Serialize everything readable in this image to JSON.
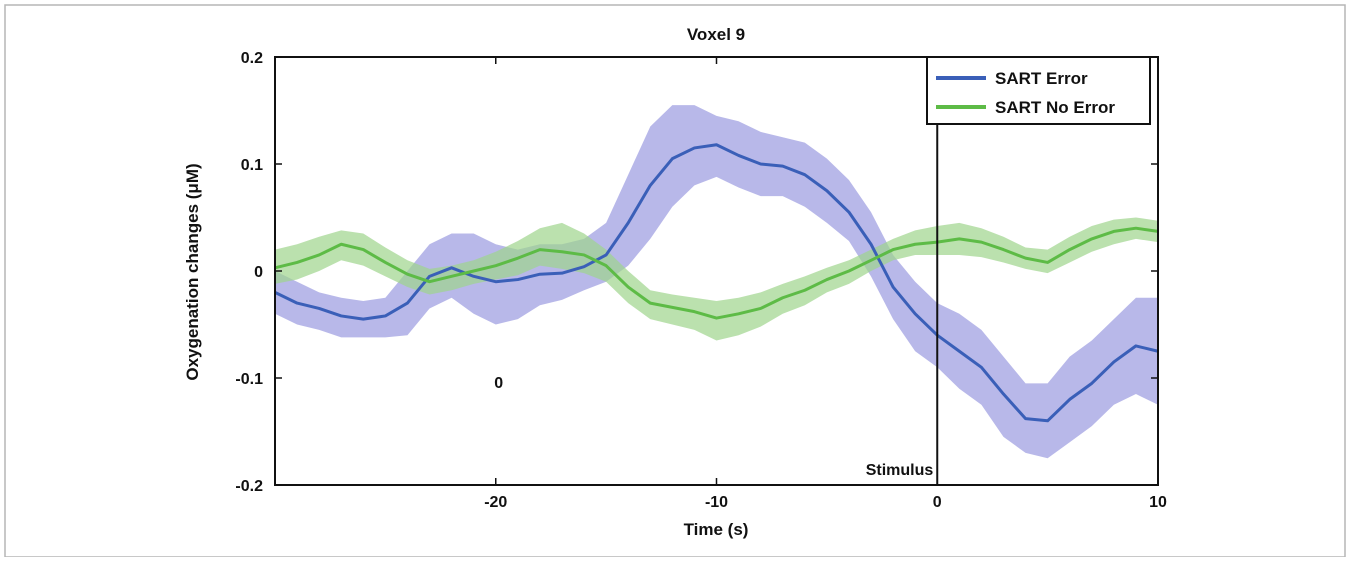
{
  "chart_data": {
    "type": "line",
    "title": "Voxel 9",
    "xlabel": "Time (s)",
    "ylabel": "Oxygenation changes (μM)",
    "xlim": [
      -30,
      10
    ],
    "ylim": [
      -0.2,
      0.2
    ],
    "x_ticks": [
      -20,
      -10,
      0,
      10
    ],
    "x_tick_labels": [
      "-20",
      "-10",
      "0",
      "10"
    ],
    "y_ticks": [
      -0.2,
      -0.1,
      0,
      0.1,
      0.2
    ],
    "y_tick_labels": [
      "-0.2",
      "-0.1",
      "0",
      "0.1",
      "0.2"
    ],
    "grid": false,
    "legend_position": "top-right",
    "series": [
      {
        "name": "SART Error",
        "color": "#3a5fb8",
        "band_color": "#9a9ae0",
        "x": [
          -30,
          -29,
          -28,
          -27,
          -26,
          -25,
          -24,
          -23,
          -22,
          -21,
          -20,
          -19,
          -18,
          -17,
          -16,
          -15,
          -14,
          -13,
          -12,
          -11,
          -10,
          -9,
          -8,
          -7,
          -6,
          -5,
          -4,
          -3,
          -2,
          -1,
          0,
          1,
          2,
          3,
          4,
          5,
          6,
          7,
          8,
          9,
          10
        ],
        "y": [
          -0.02,
          -0.03,
          -0.035,
          -0.042,
          -0.045,
          -0.042,
          -0.03,
          -0.005,
          0.003,
          -0.005,
          -0.01,
          -0.008,
          -0.003,
          -0.002,
          0.004,
          0.015,
          0.045,
          0.08,
          0.105,
          0.115,
          0.118,
          0.108,
          0.1,
          0.098,
          0.09,
          0.075,
          0.055,
          0.025,
          -0.015,
          -0.04,
          -0.06,
          -0.075,
          -0.09,
          -0.115,
          -0.138,
          -0.14,
          -0.12,
          -0.105,
          -0.085,
          -0.07,
          -0.075
        ],
        "upper": [
          0.0,
          -0.01,
          -0.02,
          -0.025,
          -0.028,
          -0.025,
          0.0,
          0.025,
          0.035,
          0.035,
          0.025,
          0.02,
          0.025,
          0.025,
          0.03,
          0.045,
          0.09,
          0.135,
          0.155,
          0.155,
          0.145,
          0.14,
          0.13,
          0.125,
          0.12,
          0.105,
          0.085,
          0.055,
          0.015,
          -0.01,
          -0.03,
          -0.04,
          -0.055,
          -0.08,
          -0.105,
          -0.105,
          -0.08,
          -0.065,
          -0.045,
          -0.025,
          -0.025
        ],
        "lower": [
          -0.04,
          -0.05,
          -0.055,
          -0.062,
          -0.062,
          -0.062,
          -0.06,
          -0.035,
          -0.025,
          -0.04,
          -0.05,
          -0.045,
          -0.032,
          -0.027,
          -0.018,
          -0.01,
          0.005,
          0.03,
          0.06,
          0.08,
          0.088,
          0.078,
          0.07,
          0.07,
          0.06,
          0.045,
          0.028,
          -0.005,
          -0.045,
          -0.075,
          -0.09,
          -0.11,
          -0.125,
          -0.155,
          -0.17,
          -0.175,
          -0.16,
          -0.145,
          -0.125,
          -0.115,
          -0.125
        ]
      },
      {
        "name": "SART No Error",
        "color": "#5dbb46",
        "band_color": "#9ed48c",
        "x": [
          -30,
          -29,
          -28,
          -27,
          -26,
          -25,
          -24,
          -23,
          -22,
          -21,
          -20,
          -19,
          -18,
          -17,
          -16,
          -15,
          -14,
          -13,
          -12,
          -11,
          -10,
          -9,
          -8,
          -7,
          -6,
          -5,
          -4,
          -3,
          -2,
          -1,
          0,
          1,
          2,
          3,
          4,
          5,
          6,
          7,
          8,
          9,
          10
        ],
        "y": [
          0.003,
          0.008,
          0.015,
          0.025,
          0.02,
          0.008,
          -0.003,
          -0.01,
          -0.005,
          0.0,
          0.005,
          0.012,
          0.02,
          0.018,
          0.015,
          0.005,
          -0.015,
          -0.03,
          -0.034,
          -0.038,
          -0.044,
          -0.04,
          -0.035,
          -0.025,
          -0.018,
          -0.008,
          0.0,
          0.01,
          0.02,
          0.025,
          0.027,
          0.03,
          0.027,
          0.02,
          0.012,
          0.008,
          0.02,
          0.03,
          0.037,
          0.04,
          0.037
        ],
        "upper": [
          0.02,
          0.025,
          0.032,
          0.038,
          0.035,
          0.022,
          0.01,
          0.002,
          0.005,
          0.01,
          0.018,
          0.028,
          0.04,
          0.045,
          0.035,
          0.02,
          0.0,
          -0.018,
          -0.022,
          -0.025,
          -0.028,
          -0.025,
          -0.02,
          -0.012,
          -0.005,
          0.003,
          0.01,
          0.02,
          0.03,
          0.038,
          0.042,
          0.045,
          0.04,
          0.032,
          0.022,
          0.02,
          0.032,
          0.042,
          0.048,
          0.05,
          0.047
        ],
        "lower": [
          -0.012,
          -0.008,
          0.0,
          0.01,
          0.005,
          -0.005,
          -0.015,
          -0.022,
          -0.018,
          -0.012,
          -0.008,
          -0.004,
          0.005,
          0.002,
          -0.002,
          -0.01,
          -0.03,
          -0.045,
          -0.05,
          -0.055,
          -0.065,
          -0.06,
          -0.052,
          -0.04,
          -0.032,
          -0.02,
          -0.012,
          0.0,
          0.01,
          0.015,
          0.015,
          0.015,
          0.013,
          0.008,
          0.002,
          -0.002,
          0.008,
          0.018,
          0.025,
          0.03,
          0.027
        ]
      }
    ],
    "annotations": [
      {
        "text": "Stimulus",
        "x": 0
      },
      {
        "text": "0",
        "x": -20,
        "y": -0.1
      }
    ]
  }
}
